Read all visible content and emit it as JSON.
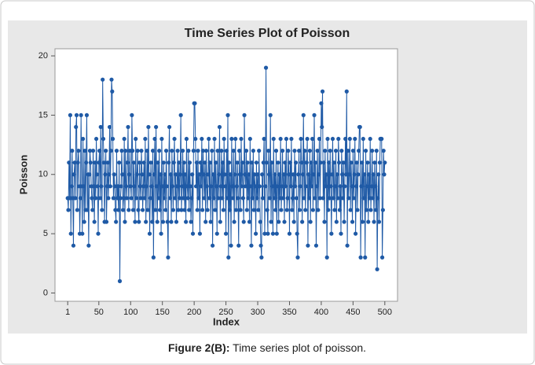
{
  "chart_data": {
    "type": "line",
    "title": "Time Series Plot of Poisson",
    "xlabel": "Index",
    "ylabel": "Poisson",
    "x": [
      1,
      2,
      3,
      4,
      5,
      6,
      7,
      8,
      9,
      10,
      11,
      12,
      13,
      14,
      15,
      16,
      17,
      18,
      19,
      20,
      21,
      22,
      23,
      24,
      25,
      26,
      27,
      28,
      29,
      30,
      31,
      32,
      33,
      34,
      35,
      36,
      37,
      38,
      39,
      40,
      41,
      42,
      43,
      44,
      45,
      46,
      47,
      48,
      49,
      50,
      51,
      52,
      53,
      54,
      55,
      56,
      57,
      58,
      59,
      60,
      61,
      62,
      63,
      64,
      65,
      66,
      67,
      68,
      69,
      70,
      71,
      72,
      73,
      74,
      75,
      76,
      77,
      78,
      79,
      80,
      81,
      82,
      83,
      84,
      85,
      86,
      87,
      88,
      89,
      90,
      91,
      92,
      93,
      94,
      95,
      96,
      97,
      98,
      99,
      100,
      101,
      102,
      103,
      104,
      105,
      106,
      107,
      108,
      109,
      110,
      111,
      112,
      113,
      114,
      115,
      116,
      117,
      118,
      119,
      120,
      121,
      122,
      123,
      124,
      125,
      126,
      127,
      128,
      129,
      130,
      131,
      132,
      133,
      134,
      135,
      136,
      137,
      138,
      139,
      140,
      141,
      142,
      143,
      144,
      145,
      146,
      147,
      148,
      149,
      150,
      151,
      152,
      153,
      154,
      155,
      156,
      157,
      158,
      159,
      160,
      161,
      162,
      163,
      164,
      165,
      166,
      167,
      168,
      169,
      170,
      171,
      172,
      173,
      174,
      175,
      176,
      177,
      178,
      179,
      180,
      181,
      182,
      183,
      184,
      185,
      186,
      187,
      188,
      189,
      190,
      191,
      192,
      193,
      194,
      195,
      196,
      197,
      198,
      199,
      200,
      201,
      202,
      203,
      204,
      205,
      206,
      207,
      208,
      209,
      210,
      211,
      212,
      213,
      214,
      215,
      216,
      217,
      218,
      219,
      220,
      221,
      222,
      223,
      224,
      225,
      226,
      227,
      228,
      229,
      230,
      231,
      232,
      233,
      234,
      235,
      236,
      237,
      238,
      239,
      240,
      241,
      242,
      243,
      244,
      245,
      246,
      247,
      248,
      249,
      250,
      251,
      252,
      253,
      254,
      255,
      256,
      257,
      258,
      259,
      260,
      261,
      262,
      263,
      264,
      265,
      266,
      267,
      268,
      269,
      270,
      271,
      272,
      273,
      274,
      275,
      276,
      277,
      278,
      279,
      280,
      281,
      282,
      283,
      284,
      285,
      286,
      287,
      288,
      289,
      290,
      291,
      292,
      293,
      294,
      295,
      296,
      297,
      298,
      299,
      300,
      301,
      302,
      303,
      304,
      305,
      306,
      307,
      308,
      309,
      310,
      311,
      312,
      313,
      314,
      315,
      316,
      317,
      318,
      319,
      320,
      321,
      322,
      323,
      324,
      325,
      326,
      327,
      328,
      329,
      330,
      331,
      332,
      333,
      334,
      335,
      336,
      337,
      338,
      339,
      340,
      341,
      342,
      343,
      344,
      345,
      346,
      347,
      348,
      349,
      350,
      351,
      352,
      353,
      354,
      355,
      356,
      357,
      358,
      359,
      360,
      361,
      362,
      363,
      364,
      365,
      366,
      367,
      368,
      369,
      370,
      371,
      372,
      373,
      374,
      375,
      376,
      377,
      378,
      379,
      380,
      381,
      382,
      383,
      384,
      385,
      386,
      387,
      388,
      389,
      390,
      391,
      392,
      393,
      394,
      395,
      396,
      397,
      398,
      399,
      400,
      401,
      402,
      403,
      404,
      405,
      406,
      407,
      408,
      409,
      410,
      411,
      412,
      413,
      414,
      415,
      416,
      417,
      418,
      419,
      420,
      421,
      422,
      423,
      424,
      425,
      426,
      427,
      428,
      429,
      430,
      431,
      432,
      433,
      434,
      435,
      436,
      437,
      438,
      439,
      440,
      441,
      442,
      443,
      444,
      445,
      446,
      447,
      448,
      449,
      450,
      451,
      452,
      453,
      454,
      455,
      456,
      457,
      458,
      459,
      460,
      461,
      462,
      463,
      464,
      465,
      466,
      467,
      468,
      469,
      470,
      471,
      472,
      473,
      474,
      475,
      476,
      477,
      478,
      479,
      480,
      481,
      482,
      483,
      484,
      485,
      486,
      487,
      488,
      489,
      490,
      491,
      492,
      493,
      494,
      495,
      496,
      497,
      498,
      499,
      500
    ],
    "series": [
      {
        "name": "Poisson",
        "color": "#1f5aa6",
        "values": [
          8,
          7,
          11,
          8,
          15,
          5,
          9,
          12,
          8,
          4,
          10,
          11,
          8,
          14,
          15,
          7,
          11,
          12,
          9,
          5,
          8,
          15,
          9,
          5,
          13,
          9,
          6,
          12,
          7,
          11,
          15,
          7,
          10,
          4,
          10,
          12,
          11,
          9,
          8,
          7,
          12,
          9,
          6,
          11,
          8,
          13,
          10,
          9,
          5,
          11,
          12,
          8,
          14,
          9,
          7,
          18,
          13,
          11,
          6,
          10,
          12,
          6,
          9,
          11,
          8,
          10,
          14,
          9,
          12,
          18,
          17,
          13,
          8,
          10,
          9,
          7,
          6,
          12,
          8,
          9,
          7,
          11,
          1,
          8,
          9,
          12,
          10,
          7,
          8,
          13,
          6,
          12,
          9,
          8,
          11,
          14,
          7,
          10,
          12,
          9,
          8,
          15,
          12,
          7,
          11,
          9,
          6,
          13,
          8,
          10,
          12,
          7,
          6,
          11,
          9,
          8,
          12,
          10,
          7,
          9,
          11,
          8,
          13,
          6,
          9,
          12,
          7,
          14,
          10,
          5,
          8,
          11,
          9,
          6,
          12,
          3,
          10,
          13,
          7,
          14,
          9,
          6,
          11,
          8,
          12,
          7,
          10,
          5,
          13,
          9,
          6,
          11,
          8,
          10,
          7,
          12,
          9,
          6,
          3,
          11,
          14,
          8,
          10,
          6,
          12,
          9,
          7,
          11,
          13,
          8,
          10,
          6,
          9,
          12,
          7,
          11,
          8,
          10,
          15,
          7,
          9,
          12,
          8,
          11,
          7,
          10,
          6,
          13,
          9,
          8,
          12,
          7,
          11,
          9,
          6,
          8,
          10,
          5,
          12,
          16,
          16,
          13,
          9,
          11,
          7,
          12,
          8,
          10,
          5,
          11,
          9,
          13,
          7,
          12,
          10,
          8,
          11,
          6,
          12,
          9,
          7,
          10,
          13,
          8,
          11,
          6,
          9,
          12,
          4,
          10,
          8,
          13,
          7,
          11,
          9,
          5,
          12,
          8,
          10,
          14,
          6,
          9,
          12,
          8,
          11,
          7,
          13,
          10,
          9,
          5,
          12,
          8,
          15,
          3,
          11,
          7,
          10,
          4,
          13,
          9,
          8,
          12,
          6,
          10,
          13,
          7,
          9,
          11,
          8,
          4,
          12,
          10,
          7,
          13,
          9,
          11,
          8,
          6,
          15,
          10,
          9,
          12,
          7,
          11,
          8,
          10,
          6,
          13,
          9,
          4,
          11,
          8,
          12,
          7,
          10,
          9,
          5,
          11,
          8,
          10,
          7,
          12,
          9,
          6,
          4,
          3,
          10,
          8,
          11,
          13,
          5,
          9,
          19,
          11,
          7,
          5,
          12,
          10,
          8,
          15,
          6,
          11,
          9,
          5,
          13,
          8,
          10,
          7,
          12,
          5,
          9,
          11,
          6,
          10,
          8,
          13,
          7,
          9,
          12,
          8,
          10,
          6,
          11,
          9,
          13,
          7,
          8,
          12,
          10,
          5,
          11,
          9,
          13,
          7,
          8,
          10,
          6,
          12,
          9,
          11,
          8,
          5,
          3,
          10,
          12,
          7,
          9,
          13,
          11,
          6,
          10,
          15,
          8,
          12,
          7,
          9,
          11,
          13,
          4,
          10,
          8,
          12,
          6,
          11,
          9,
          13,
          7,
          10,
          15,
          8,
          11,
          4,
          9,
          12,
          7,
          10,
          13,
          8,
          11,
          16,
          14,
          17,
          8,
          11,
          6,
          12,
          9,
          10,
          3,
          13,
          7,
          11,
          8,
          12,
          9,
          5,
          10,
          13,
          8,
          11,
          7,
          9,
          12,
          6,
          10,
          8,
          13,
          11,
          7,
          9,
          5,
          12,
          10,
          8,
          11,
          6,
          9,
          13,
          10,
          17,
          4,
          12,
          8,
          10,
          13,
          7,
          11,
          9,
          6,
          12,
          8,
          10,
          13,
          5,
          9,
          11,
          7,
          10,
          12,
          14,
          14,
          3,
          9,
          11,
          6,
          13,
          8,
          10,
          3,
          12,
          7,
          9,
          11,
          6,
          10,
          8,
          13,
          7,
          9,
          12,
          8,
          10,
          6,
          11,
          9,
          7,
          12,
          2,
          8,
          10,
          6,
          11,
          13,
          13,
          13,
          3,
          7,
          12,
          10,
          11
        ]
      }
    ],
    "xlim": [
      -19,
      520
    ],
    "xticks": [
      1,
      50,
      100,
      150,
      200,
      250,
      300,
      350,
      400,
      450,
      500
    ],
    "ylim": [
      -0.7,
      20.6
    ],
    "yticks": [
      0,
      5,
      10,
      15,
      20
    ]
  },
  "caption": {
    "label": "Figure 2(B):",
    "text": "Time series plot of poisson."
  }
}
